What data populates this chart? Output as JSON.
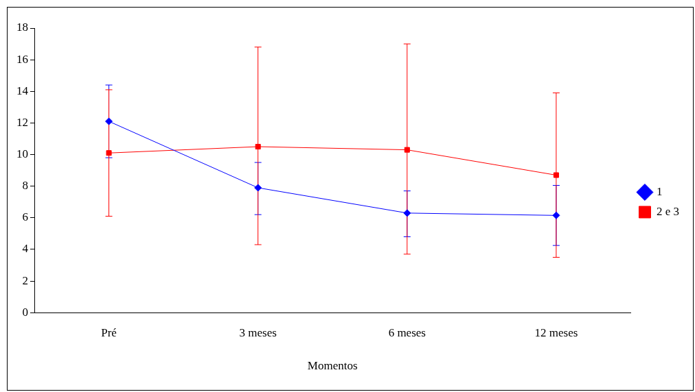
{
  "chart_data": {
    "type": "line",
    "xlabel": "Momentos",
    "categories": [
      "Pré",
      "3 meses",
      "6 meses",
      "12 meses"
    ],
    "series": [
      {
        "name": "1",
        "color": "#0000ff",
        "marker": "diamond",
        "values": [
          12.1,
          7.9,
          6.3,
          6.15
        ],
        "errors": [
          [
            9.8,
            14.4
          ],
          [
            6.2,
            9.5
          ],
          [
            4.8,
            7.7
          ],
          [
            4.25,
            8.05
          ]
        ]
      },
      {
        "name": "2 e 3",
        "color": "#ff0000",
        "marker": "square",
        "values": [
          10.1,
          10.5,
          10.3,
          8.7
        ],
        "errors": [
          [
            6.1,
            14.1
          ],
          [
            4.3,
            16.8
          ],
          [
            3.7,
            17.0
          ],
          [
            3.5,
            13.9
          ]
        ]
      }
    ],
    "ylim": [
      0,
      18
    ],
    "yticks": [
      0,
      2,
      4,
      6,
      8,
      10,
      12,
      14,
      16,
      18
    ],
    "grid": false,
    "legend": "right"
  }
}
